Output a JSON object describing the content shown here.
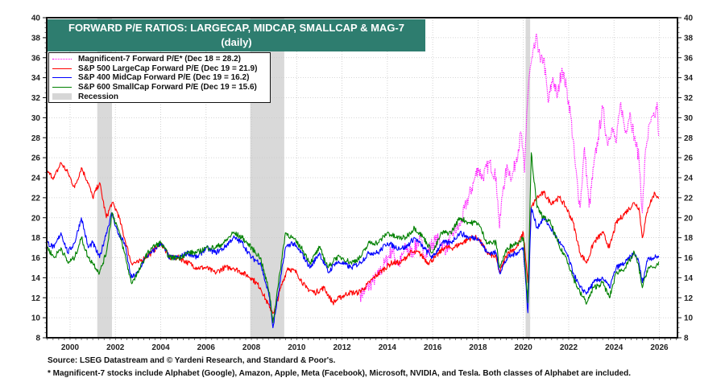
{
  "chart_data": {
    "type": "line",
    "title": "FORWARD P/E RATIOS: LARGECAP, MIDCAP, SMALLCAP & MAG-7",
    "subtitle": "(daily)",
    "xlabel": "",
    "ylabel": "",
    "xlim": [
      1998.97,
      2026.8
    ],
    "ylim": [
      8,
      40
    ],
    "x_ticks": [
      2000,
      2002,
      2004,
      2006,
      2008,
      2010,
      2012,
      2014,
      2016,
      2018,
      2020,
      2022,
      2024,
      2026
    ],
    "y_ticks": [
      8,
      10,
      12,
      14,
      16,
      18,
      20,
      22,
      24,
      26,
      28,
      30,
      32,
      34,
      36,
      38,
      40
    ],
    "grid": true,
    "legend_position": "top-left",
    "recessions": [
      {
        "start": 2001.2,
        "end": 2001.85
      },
      {
        "start": 2007.95,
        "end": 2009.45
      },
      {
        "start": 2020.1,
        "end": 2020.3
      }
    ],
    "series": [
      {
        "name": "Magnificent-7 Forward P/E* (Dec 18 = 28.2)",
        "color": "#ff00ff",
        "style": "dotted",
        "x": [
          2012.8,
          2013.0,
          2013.3,
          2013.6,
          2013.9,
          2014.2,
          2014.5,
          2014.8,
          2015.1,
          2015.4,
          2015.7,
          2016.0,
          2016.3,
          2016.6,
          2016.9,
          2017.2,
          2017.5,
          2017.8,
          2018.0,
          2018.2,
          2018.5,
          2018.8,
          2018.95,
          2019.1,
          2019.3,
          2019.5,
          2019.7,
          2019.9,
          2020.05,
          2020.15,
          2020.25,
          2020.4,
          2020.6,
          2020.75,
          2020.9,
          2021.1,
          2021.3,
          2021.5,
          2021.7,
          2021.9,
          2022.1,
          2022.3,
          2022.5,
          2022.7,
          2022.9,
          2023.1,
          2023.3,
          2023.5,
          2023.7,
          2023.9,
          2024.1,
          2024.3,
          2024.5,
          2024.7,
          2024.9,
          2025.1,
          2025.25,
          2025.4,
          2025.6,
          2025.8,
          2025.9,
          2025.97
        ],
        "values": [
          12.3,
          12.6,
          13.5,
          14.2,
          15.5,
          16.8,
          15.2,
          17.0,
          16.5,
          17.8,
          16.2,
          17.5,
          17.8,
          16.8,
          18.5,
          19.2,
          21.5,
          23.5,
          25.0,
          24.0,
          25.5,
          24.0,
          19.0,
          23.0,
          25.0,
          24.0,
          26.0,
          28.5,
          24.5,
          30.5,
          34.0,
          36.0,
          38.0,
          35.5,
          36.0,
          31.5,
          34.0,
          32.0,
          35.0,
          33.0,
          30.0,
          25.0,
          21.0,
          27.0,
          21.0,
          25.0,
          28.0,
          31.0,
          27.5,
          29.0,
          27.5,
          31.5,
          28.5,
          30.5,
          28.0,
          26.0,
          20.5,
          27.0,
          29.5,
          30.0,
          31.5,
          28.2
        ]
      },
      {
        "name": "S&P 500 LargeCap Forward P/E (Dec 19 = 21.9)",
        "color": "#ff0000",
        "style": "solid",
        "x": [
          1999.0,
          1999.3,
          1999.6,
          1999.9,
          2000.2,
          2000.5,
          2000.8,
          2001.0,
          2001.3,
          2001.6,
          2001.85,
          2002.1,
          2002.4,
          2002.7,
          2003.0,
          2003.3,
          2003.6,
          2004.0,
          2004.4,
          2004.8,
          2005.2,
          2005.6,
          2006.0,
          2006.4,
          2006.8,
          2007.2,
          2007.6,
          2008.0,
          2008.4,
          2008.8,
          2009.0,
          2009.3,
          2009.6,
          2010.0,
          2010.4,
          2010.8,
          2011.2,
          2011.6,
          2011.9,
          2012.3,
          2012.7,
          2013.0,
          2013.4,
          2013.8,
          2014.2,
          2014.6,
          2015.0,
          2015.4,
          2015.8,
          2016.1,
          2016.5,
          2016.9,
          2017.3,
          2017.7,
          2018.0,
          2018.4,
          2018.8,
          2018.95,
          2019.3,
          2019.7,
          2020.0,
          2020.2,
          2020.35,
          2020.6,
          2020.9,
          2021.2,
          2021.6,
          2021.9,
          2022.2,
          2022.5,
          2022.8,
          2023.1,
          2023.5,
          2023.8,
          2024.1,
          2024.5,
          2024.9,
          2025.1,
          2025.25,
          2025.5,
          2025.8,
          2025.97
        ],
        "values": [
          24.5,
          24.0,
          25.5,
          24.5,
          23.0,
          25.0,
          23.5,
          22.0,
          23.5,
          20.0,
          21.5,
          20.5,
          18.0,
          15.5,
          15.5,
          16.0,
          16.5,
          17.5,
          16.0,
          16.0,
          15.5,
          15.0,
          15.0,
          14.5,
          15.0,
          15.0,
          14.5,
          14.0,
          13.0,
          11.0,
          10.5,
          13.0,
          15.0,
          14.5,
          13.0,
          12.5,
          13.0,
          11.5,
          12.0,
          12.5,
          12.5,
          13.0,
          14.0,
          14.8,
          15.5,
          15.5,
          16.5,
          16.5,
          15.5,
          16.0,
          17.0,
          17.0,
          17.5,
          18.0,
          18.0,
          16.5,
          16.0,
          14.5,
          16.5,
          17.0,
          18.5,
          13.5,
          21.0,
          22.0,
          22.5,
          21.5,
          22.0,
          21.0,
          19.5,
          16.5,
          15.5,
          17.5,
          18.5,
          17.0,
          19.5,
          20.5,
          21.5,
          21.0,
          18.0,
          21.0,
          22.5,
          21.9
        ]
      },
      {
        "name": "S&P 400 MidCap Forward P/E (Dec 19 = 16.2)",
        "color": "#0000ff",
        "style": "solid",
        "x": [
          1999.0,
          1999.3,
          1999.6,
          1999.9,
          2000.2,
          2000.5,
          2000.8,
          2001.0,
          2001.3,
          2001.6,
          2001.85,
          2002.1,
          2002.4,
          2002.7,
          2003.0,
          2003.3,
          2003.6,
          2004.0,
          2004.4,
          2004.8,
          2005.2,
          2005.6,
          2006.0,
          2006.4,
          2006.8,
          2007.2,
          2007.6,
          2008.0,
          2008.4,
          2008.8,
          2008.95,
          2009.2,
          2009.5,
          2009.8,
          2010.2,
          2010.6,
          2011.0,
          2011.4,
          2011.7,
          2012.0,
          2012.4,
          2012.8,
          2013.2,
          2013.6,
          2014.0,
          2014.4,
          2014.8,
          2015.2,
          2015.6,
          2016.0,
          2016.4,
          2016.8,
          2017.2,
          2017.6,
          2018.0,
          2018.4,
          2018.8,
          2018.95,
          2019.3,
          2019.7,
          2020.0,
          2020.2,
          2020.35,
          2020.6,
          2020.9,
          2021.2,
          2021.6,
          2021.9,
          2022.2,
          2022.5,
          2022.8,
          2023.1,
          2023.5,
          2023.8,
          2024.1,
          2024.5,
          2024.9,
          2025.1,
          2025.25,
          2025.5,
          2025.8,
          2025.97
        ],
        "values": [
          17.5,
          17.0,
          18.5,
          16.5,
          17.5,
          20.0,
          17.0,
          17.5,
          16.0,
          18.5,
          20.5,
          18.5,
          17.5,
          14.0,
          14.5,
          16.0,
          16.5,
          17.5,
          16.0,
          16.0,
          16.5,
          16.0,
          17.0,
          16.5,
          17.0,
          18.0,
          17.5,
          16.0,
          15.5,
          12.0,
          9.0,
          12.5,
          17.0,
          17.5,
          16.5,
          15.0,
          16.5,
          14.5,
          15.5,
          15.5,
          15.0,
          15.5,
          16.5,
          16.5,
          17.5,
          17.0,
          17.0,
          18.0,
          17.0,
          16.0,
          17.5,
          17.5,
          18.5,
          18.0,
          18.0,
          16.5,
          16.5,
          14.5,
          16.0,
          16.5,
          17.0,
          10.5,
          21.0,
          19.0,
          20.0,
          19.0,
          17.5,
          16.5,
          14.5,
          13.0,
          12.5,
          13.5,
          14.0,
          13.0,
          15.0,
          15.5,
          16.5,
          15.5,
          13.5,
          16.0,
          16.0,
          16.2
        ]
      },
      {
        "name": "S&P 600 SmallCap Forward P/E (Dec 19 = 15.6)",
        "color": "#008000",
        "style": "solid",
        "x": [
          1999.0,
          1999.3,
          1999.6,
          1999.9,
          2000.2,
          2000.5,
          2000.8,
          2001.0,
          2001.3,
          2001.6,
          2001.85,
          2002.1,
          2002.4,
          2002.7,
          2003.0,
          2003.3,
          2003.6,
          2004.0,
          2004.4,
          2004.8,
          2005.2,
          2005.6,
          2006.0,
          2006.4,
          2006.8,
          2007.2,
          2007.6,
          2008.0,
          2008.4,
          2008.8,
          2008.95,
          2009.2,
          2009.5,
          2009.8,
          2010.2,
          2010.6,
          2011.0,
          2011.4,
          2011.7,
          2012.0,
          2012.4,
          2012.8,
          2013.2,
          2013.6,
          2014.0,
          2014.4,
          2014.8,
          2015.2,
          2015.6,
          2016.0,
          2016.4,
          2016.8,
          2017.2,
          2017.6,
          2018.0,
          2018.4,
          2018.8,
          2018.95,
          2019.3,
          2019.7,
          2020.0,
          2020.2,
          2020.35,
          2020.6,
          2020.9,
          2021.2,
          2021.6,
          2021.9,
          2022.2,
          2022.5,
          2022.8,
          2023.1,
          2023.5,
          2023.8,
          2024.1,
          2024.5,
          2024.9,
          2025.1,
          2025.25,
          2025.5,
          2025.8,
          2025.97
        ],
        "values": [
          17.0,
          16.0,
          17.0,
          15.5,
          16.0,
          18.0,
          16.0,
          15.5,
          14.5,
          16.5,
          20.5,
          19.0,
          16.5,
          13.5,
          14.5,
          16.0,
          17.0,
          17.5,
          16.0,
          16.0,
          16.5,
          16.5,
          17.0,
          17.0,
          17.5,
          18.5,
          18.0,
          17.0,
          16.0,
          12.5,
          9.5,
          13.5,
          18.5,
          18.0,
          17.0,
          15.5,
          17.0,
          15.0,
          16.0,
          16.0,
          15.5,
          16.0,
          17.5,
          17.5,
          18.5,
          18.0,
          18.0,
          19.0,
          18.0,
          16.5,
          18.5,
          18.5,
          20.0,
          19.5,
          19.5,
          17.5,
          17.5,
          15.0,
          17.0,
          17.5,
          18.0,
          11.5,
          26.5,
          21.0,
          20.0,
          19.5,
          17.0,
          16.0,
          14.0,
          12.5,
          11.5,
          13.0,
          13.5,
          12.0,
          14.5,
          15.0,
          16.5,
          15.0,
          13.0,
          15.0,
          15.0,
          15.6
        ]
      }
    ]
  },
  "legend": {
    "items": [
      {
        "label": "Magnificent-7 Forward P/E* (Dec 18 = 28.2)",
        "color": "#ff00ff",
        "kind": "dotted"
      },
      {
        "label": "S&P 500 LargeCap Forward P/E (Dec 19 = 21.9)",
        "color": "#ff0000",
        "kind": "line"
      },
      {
        "label": "S&P 400 MidCap Forward P/E (Dec 19 = 16.2)",
        "color": "#0000ff",
        "kind": "line"
      },
      {
        "label": "S&P 600 SmallCap Forward P/E (Dec 19 = 15.6)",
        "color": "#008000",
        "kind": "line"
      },
      {
        "label": "Recession",
        "color": "#d6d6d6",
        "kind": "box"
      }
    ]
  },
  "title_box": {
    "line1": "FORWARD P/E RATIOS: LARGECAP, MIDCAP, SMALLCAP & MAG-7",
    "line2": "(daily)",
    "color": "#2e7d6f"
  },
  "footer": {
    "source": "Source: LSEG Datastream and © Yardeni Research, and Standard & Poor's.",
    "note": "* Magnificent-7 stocks include Alphabet (Google), Amazon, Apple, Meta (Facebook), Microsoft, NVIDIA, and Tesla. Both classes of Alphabet are included."
  }
}
